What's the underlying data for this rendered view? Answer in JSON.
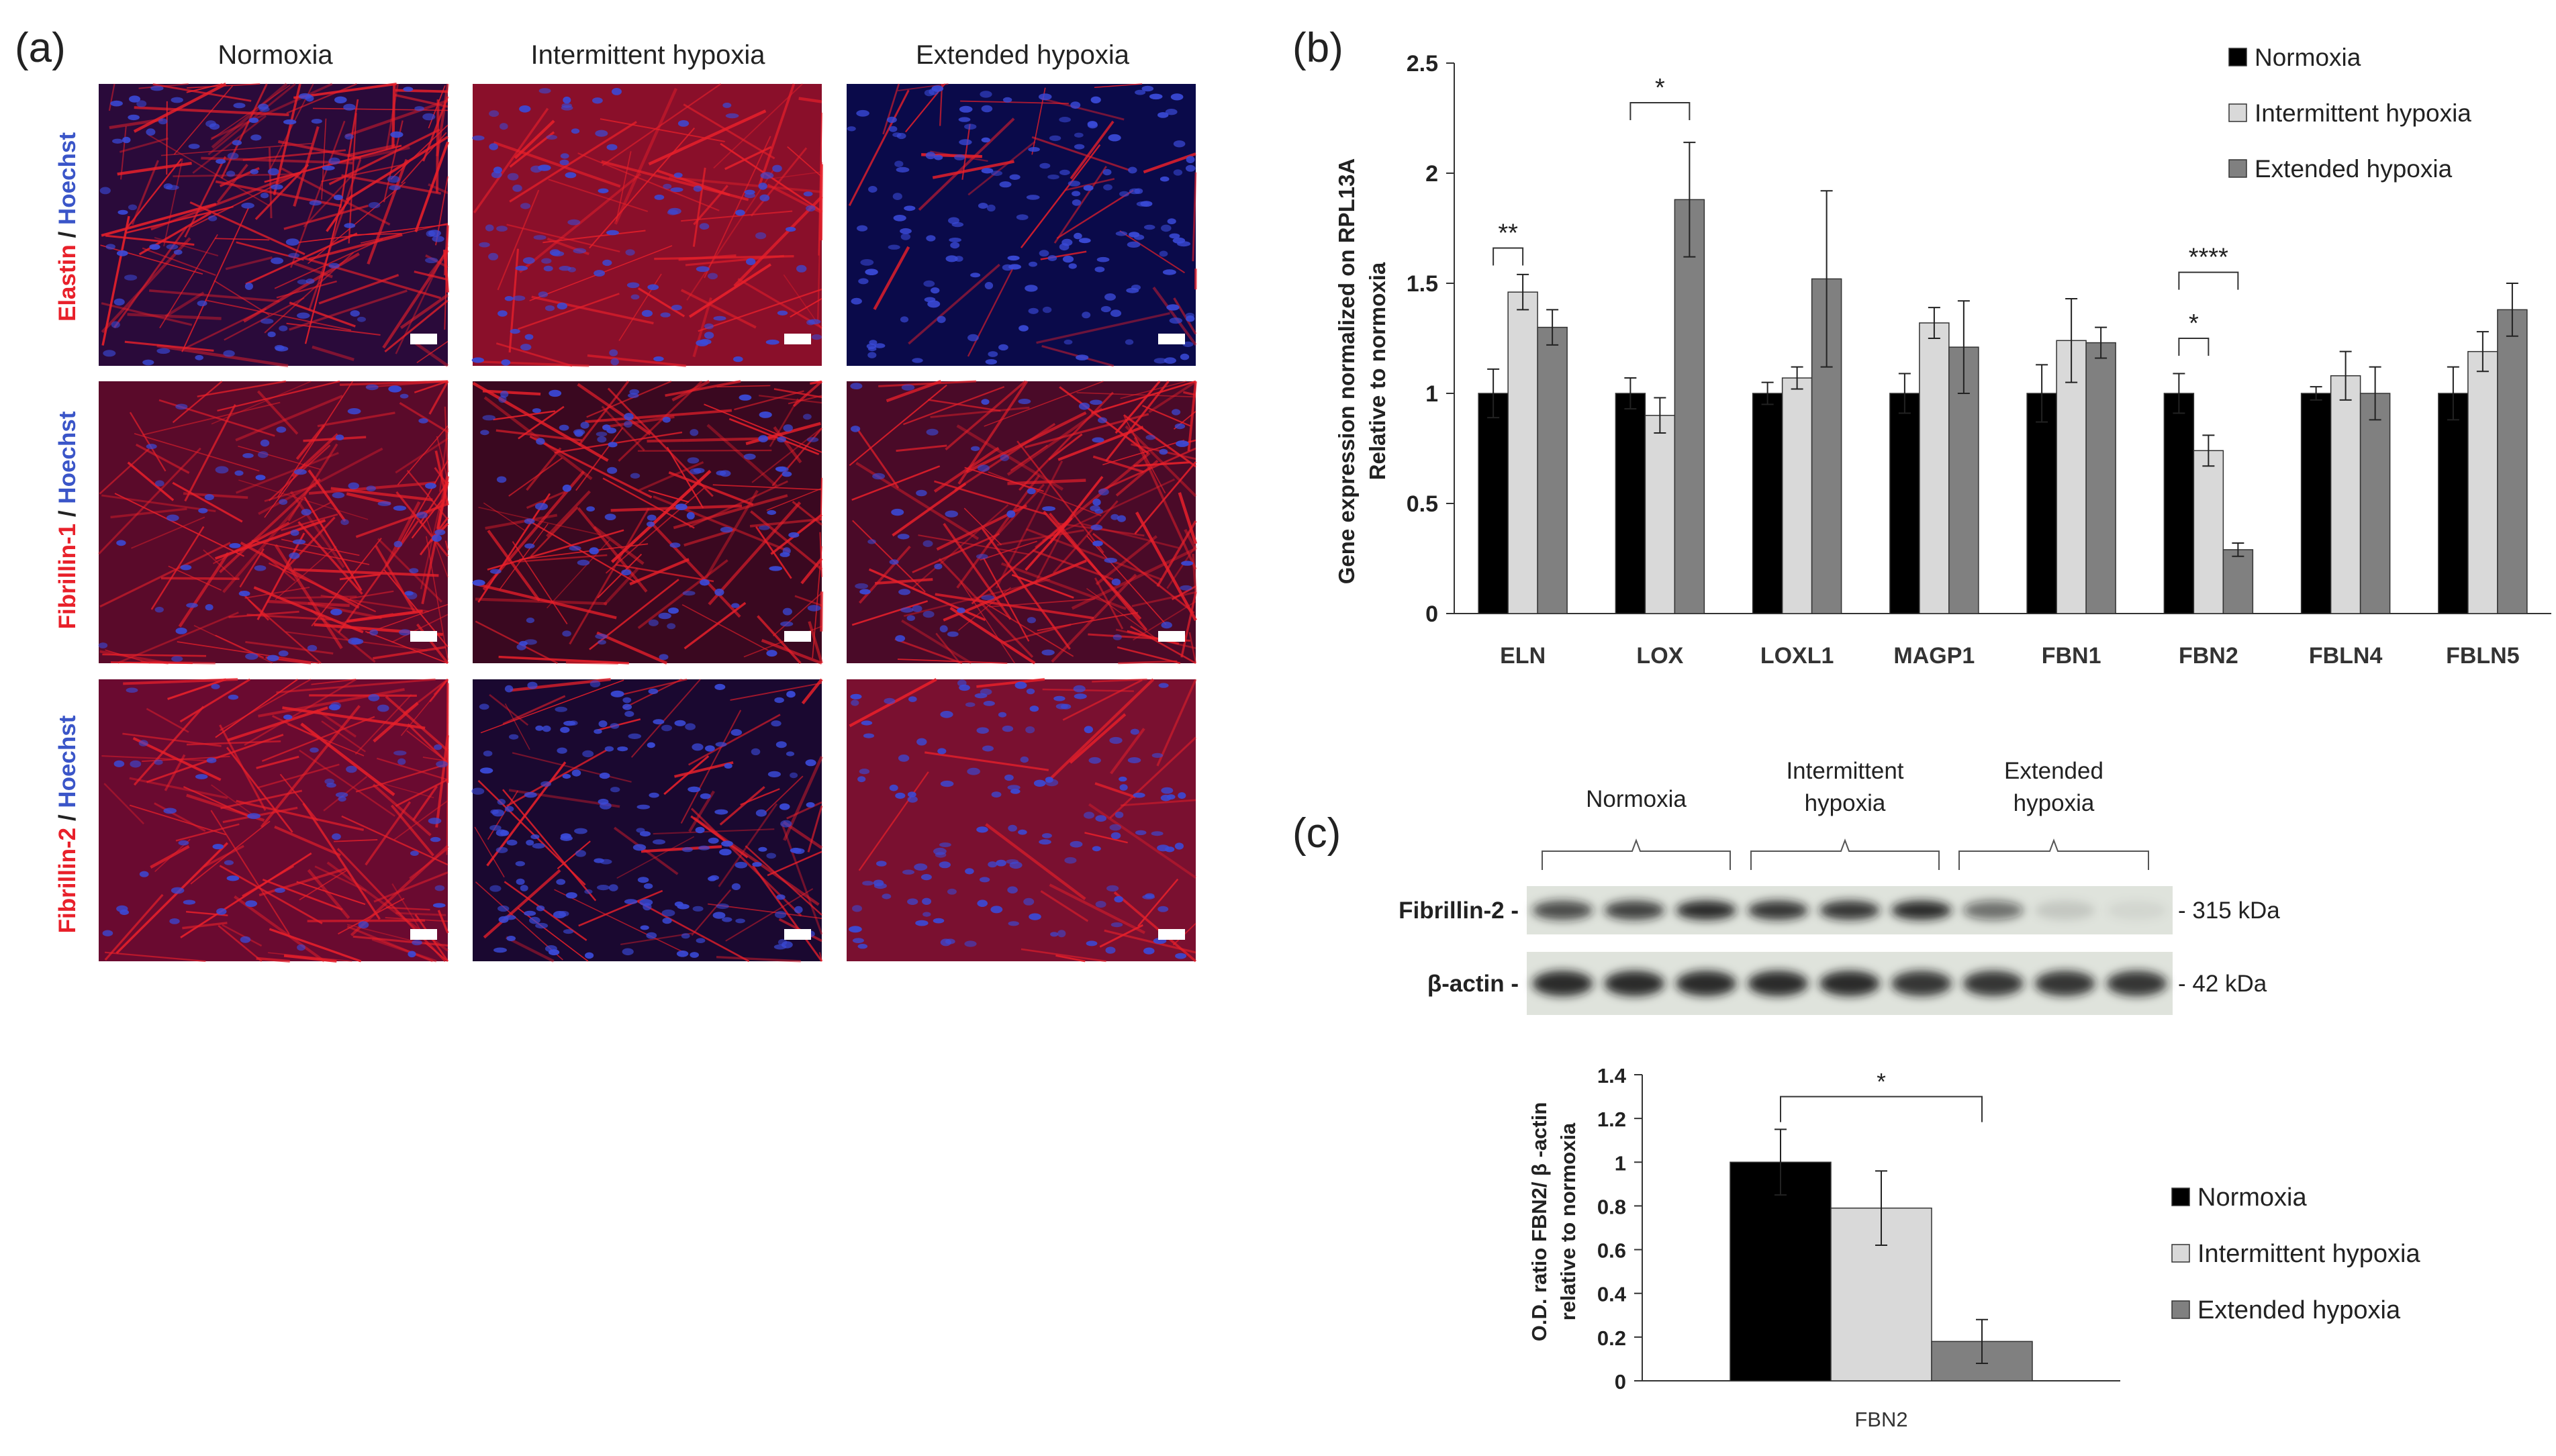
{
  "colors": {
    "normoxia": "#000000",
    "intermittent": "#d9d9d9",
    "extended": "#808080",
    "stain_red": "#e8202a",
    "stain_blue": "#3a4ad8",
    "tissue_bg": "#5a0a1a"
  },
  "panel_a": {
    "label": "(a)",
    "columns": [
      "Normoxia",
      "Intermittent hypoxia",
      "Extended hypoxia"
    ],
    "rows": [
      {
        "stain": "Elastin",
        "sep": " / ",
        "counter": "Hoechst"
      },
      {
        "stain": "Fibrillin-1",
        "sep": " / ",
        "counter": "Hoechst"
      },
      {
        "stain": "Fibrillin-2",
        "sep": " / ",
        "counter": "Hoechst"
      }
    ]
  },
  "panel_b": {
    "label": "(b)"
  },
  "panel_c": {
    "label": "(c)",
    "blot": {
      "group_labels": [
        [
          "Normoxia"
        ],
        [
          "Intermittent",
          "hypoxia"
        ],
        [
          "Extended",
          "hypoxia"
        ]
      ],
      "rows": [
        {
          "name": "Fibrillin-2 -",
          "size": "- 315 kDa",
          "intensities": [
            0.75,
            0.8,
            0.9,
            0.85,
            0.85,
            0.9,
            0.55,
            0.12,
            0.06
          ]
        },
        {
          "name": "β-actin -",
          "size": "- 42 kDa",
          "intensities": [
            0.9,
            0.9,
            0.9,
            0.9,
            0.9,
            0.85,
            0.85,
            0.85,
            0.85
          ]
        }
      ]
    }
  },
  "chart_data": [
    {
      "type": "bar",
      "title": "",
      "ylabel": [
        "Gene expression normalized on RPL13A",
        "Relative to normoxia"
      ],
      "xlabel": "",
      "ylim": [
        0,
        2.5
      ],
      "yticks": [
        "0",
        "0.5",
        "1",
        "1.5",
        "2",
        "2.5"
      ],
      "categories": [
        "ELN",
        "LOX",
        "LOXL1",
        "MAGP1",
        "FBN1",
        "FBN2",
        "FBLN4",
        "FBLN5"
      ],
      "series": [
        {
          "name": "Normoxia",
          "values": [
            1.0,
            1.0,
            1.0,
            1.0,
            1.0,
            1.0,
            1.0,
            1.0
          ],
          "errors": [
            0.11,
            0.07,
            0.05,
            0.09,
            0.13,
            0.09,
            0.03,
            0.12
          ]
        },
        {
          "name": "Intermittent hypoxia",
          "values": [
            1.46,
            0.9,
            1.07,
            1.32,
            1.24,
            0.74,
            1.08,
            1.19
          ],
          "errors": [
            0.08,
            0.08,
            0.05,
            0.07,
            0.19,
            0.07,
            0.11,
            0.09
          ]
        },
        {
          "name": "Extended hypoxia",
          "values": [
            1.3,
            1.88,
            1.52,
            1.21,
            1.23,
            0.29,
            1.0,
            1.38
          ],
          "errors": [
            0.08,
            0.26,
            0.4,
            0.21,
            0.07,
            0.03,
            0.12,
            0.12
          ]
        }
      ],
      "significance": [
        {
          "category": "ELN",
          "from": 0,
          "to": 1,
          "label": "**",
          "y": 1.66
        },
        {
          "category": "LOX",
          "from": 0,
          "to": 2,
          "label": "*",
          "y": 2.32
        },
        {
          "category": "FBN2",
          "from": 0,
          "to": 1,
          "label": "*",
          "y": 1.25
        },
        {
          "category": "FBN2",
          "from": 0,
          "to": 2,
          "label": "****",
          "y": 1.55
        }
      ],
      "legend_position": "top-right",
      "grid": false
    },
    {
      "type": "bar",
      "title": "",
      "ylabel": [
        "O.D. ratio FBN2/ β -actin",
        "relative to normoxia"
      ],
      "xlabel": "",
      "ylim": [
        0,
        1.4
      ],
      "yticks": [
        "0",
        "0.2",
        "0.4",
        "0.6",
        "0.8",
        "1",
        "1.2",
        "1.4"
      ],
      "categories": [
        "FBN2"
      ],
      "series": [
        {
          "name": "Normoxia",
          "values": [
            1.0
          ],
          "errors": [
            0.15
          ]
        },
        {
          "name": "Intermittent hypoxia",
          "values": [
            0.79
          ],
          "errors": [
            0.17
          ]
        },
        {
          "name": "Extended hypoxia",
          "values": [
            0.18
          ],
          "errors": [
            0.1
          ]
        }
      ],
      "significance": [
        {
          "category": "FBN2",
          "from": 0,
          "to": 2,
          "label": "*",
          "y": 1.3
        }
      ],
      "legend_position": "right",
      "grid": false
    }
  ]
}
